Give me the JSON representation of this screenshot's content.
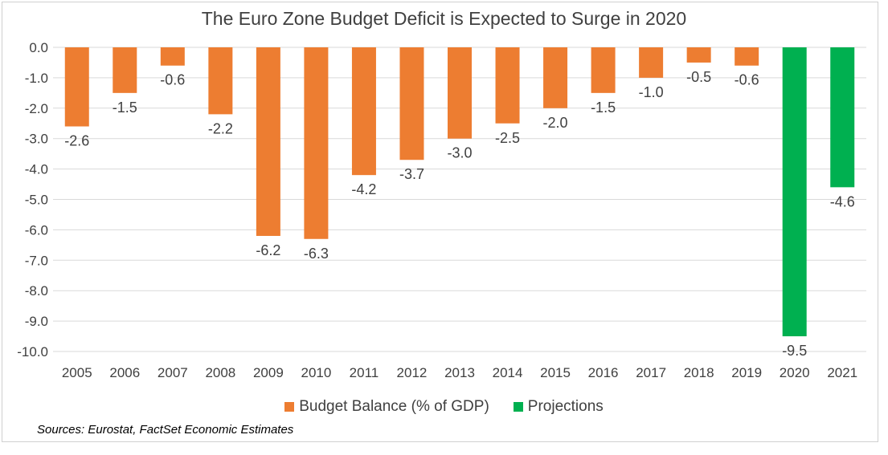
{
  "chart_data": {
    "type": "bar",
    "title": "The Euro Zone Budget Deficit is Expected to Surge in 2020",
    "categories": [
      "2005",
      "2006",
      "2007",
      "2008",
      "2009",
      "2010",
      "2011",
      "2012",
      "2013",
      "2014",
      "2015",
      "2016",
      "2017",
      "2018",
      "2019",
      "2020",
      "2021"
    ],
    "series": [
      {
        "name": "Budget Balance (% of GDP)",
        "color": "#ED7D31",
        "values": [
          -2.6,
          -1.5,
          -0.6,
          -2.2,
          -6.2,
          -6.3,
          -4.2,
          -3.7,
          -3.0,
          -2.5,
          -2.0,
          -1.5,
          -1.0,
          -0.5,
          -0.6,
          null,
          null
        ]
      },
      {
        "name": "Projections",
        "color": "#00B050",
        "values": [
          null,
          null,
          null,
          null,
          null,
          null,
          null,
          null,
          null,
          null,
          null,
          null,
          null,
          null,
          null,
          -9.5,
          -4.6
        ]
      }
    ],
    "data_labels": [
      "-2.6",
      "-1.5",
      "-0.6",
      "-2.2",
      "-6.2",
      "-6.3",
      "-4.2",
      "-3.7",
      "-3.0",
      "-2.5",
      "-2.0",
      "-1.5",
      "-1.0",
      "-0.5",
      "-0.6",
      "-9.5",
      "-4.6"
    ],
    "ylim": [
      -10.0,
      0.0
    ],
    "yticks": [
      "0.0",
      "-1.0",
      "-2.0",
      "-3.0",
      "-4.0",
      "-5.0",
      "-6.0",
      "-7.0",
      "-8.0",
      "-9.0",
      "-10.0"
    ],
    "grid": true,
    "legend_position": "bottom",
    "xlabel": "",
    "ylabel": ""
  },
  "source": "Sources: Eurostat, FactSet Economic Estimates"
}
